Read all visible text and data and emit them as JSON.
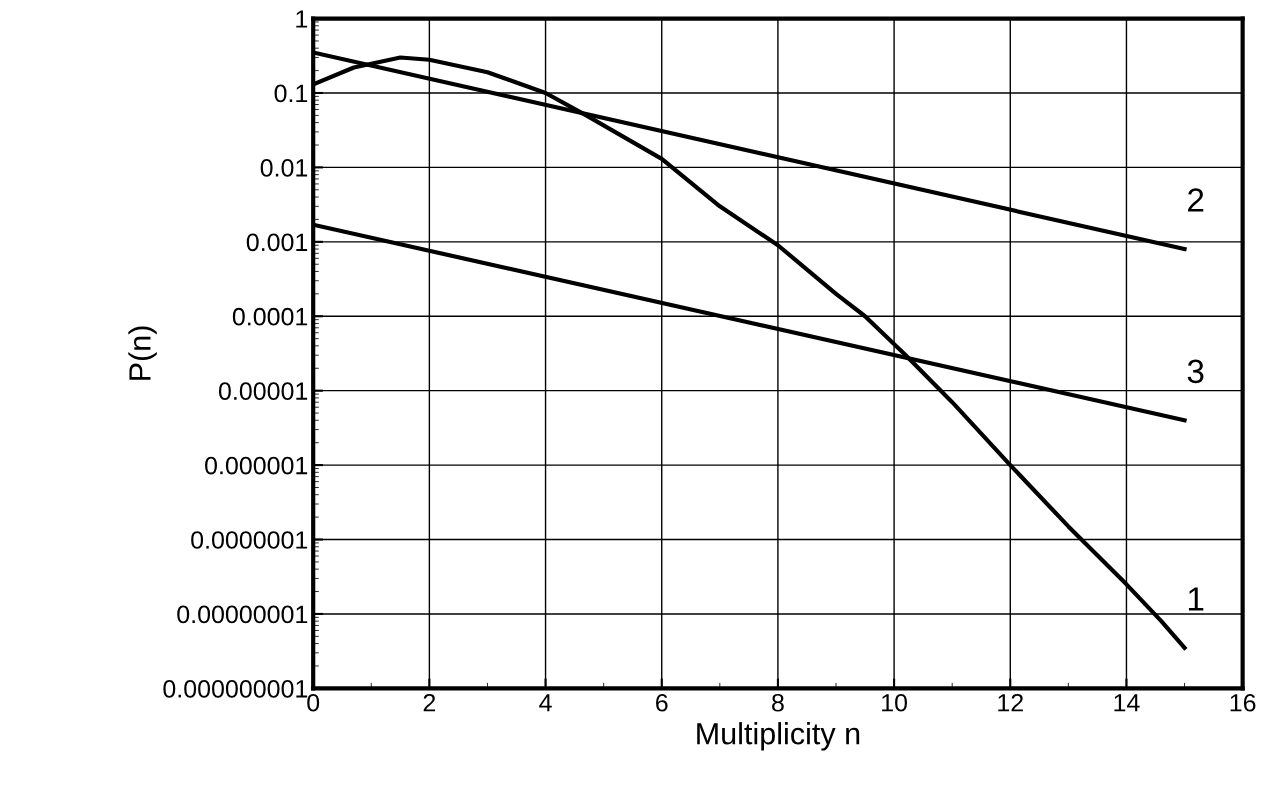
{
  "chart_data": {
    "type": "line",
    "xlabel": "Multiplicity n",
    "ylabel": "P(n)",
    "log": "y",
    "grid": true,
    "marker": "none",
    "line_style": "solid",
    "xlim": [
      0,
      16
    ],
    "xticks": [
      0,
      2,
      4,
      6,
      8,
      10,
      12,
      14,
      16
    ],
    "ylim": [
      1e-09,
      1
    ],
    "yticks": [
      {
        "value": 1e-09,
        "label": "0.000000001"
      },
      {
        "value": 1e-08,
        "label": "0.00000001"
      },
      {
        "value": 1e-07,
        "label": "0.0000001"
      },
      {
        "value": 1e-06,
        "label": "0.000001"
      },
      {
        "value": 1e-05,
        "label": "0.00001"
      },
      {
        "value": 0.0001,
        "label": "0.0001"
      },
      {
        "value": 0.001,
        "label": "0.001"
      },
      {
        "value": 0.01,
        "label": "0.01"
      },
      {
        "value": 0.1,
        "label": "0.1"
      },
      {
        "value": 1,
        "label": "1"
      }
    ],
    "series": [
      {
        "name": "1",
        "color": "#000000",
        "x": [
          0,
          0.7,
          1.5,
          2,
          3,
          4,
          4.7,
          6,
          7,
          8,
          9,
          9.5,
          10.2,
          11,
          12,
          13,
          14,
          14.6,
          15
        ],
        "values": [
          0.13,
          0.22,
          0.3,
          0.28,
          0.19,
          0.1,
          0.05,
          0.013,
          0.003,
          0.0009,
          0.0002,
          0.0001,
          3e-05,
          7e-06,
          1e-06,
          1.5e-07,
          2.5e-08,
          8e-09,
          3.5e-09
        ]
      },
      {
        "name": "2",
        "color": "#000000",
        "x": [
          0,
          15
        ],
        "values": [
          0.35,
          0.0008
        ]
      },
      {
        "name": "3",
        "color": "#000000",
        "x": [
          0,
          15
        ],
        "values": [
          0.0017,
          4e-06
        ]
      }
    ]
  }
}
